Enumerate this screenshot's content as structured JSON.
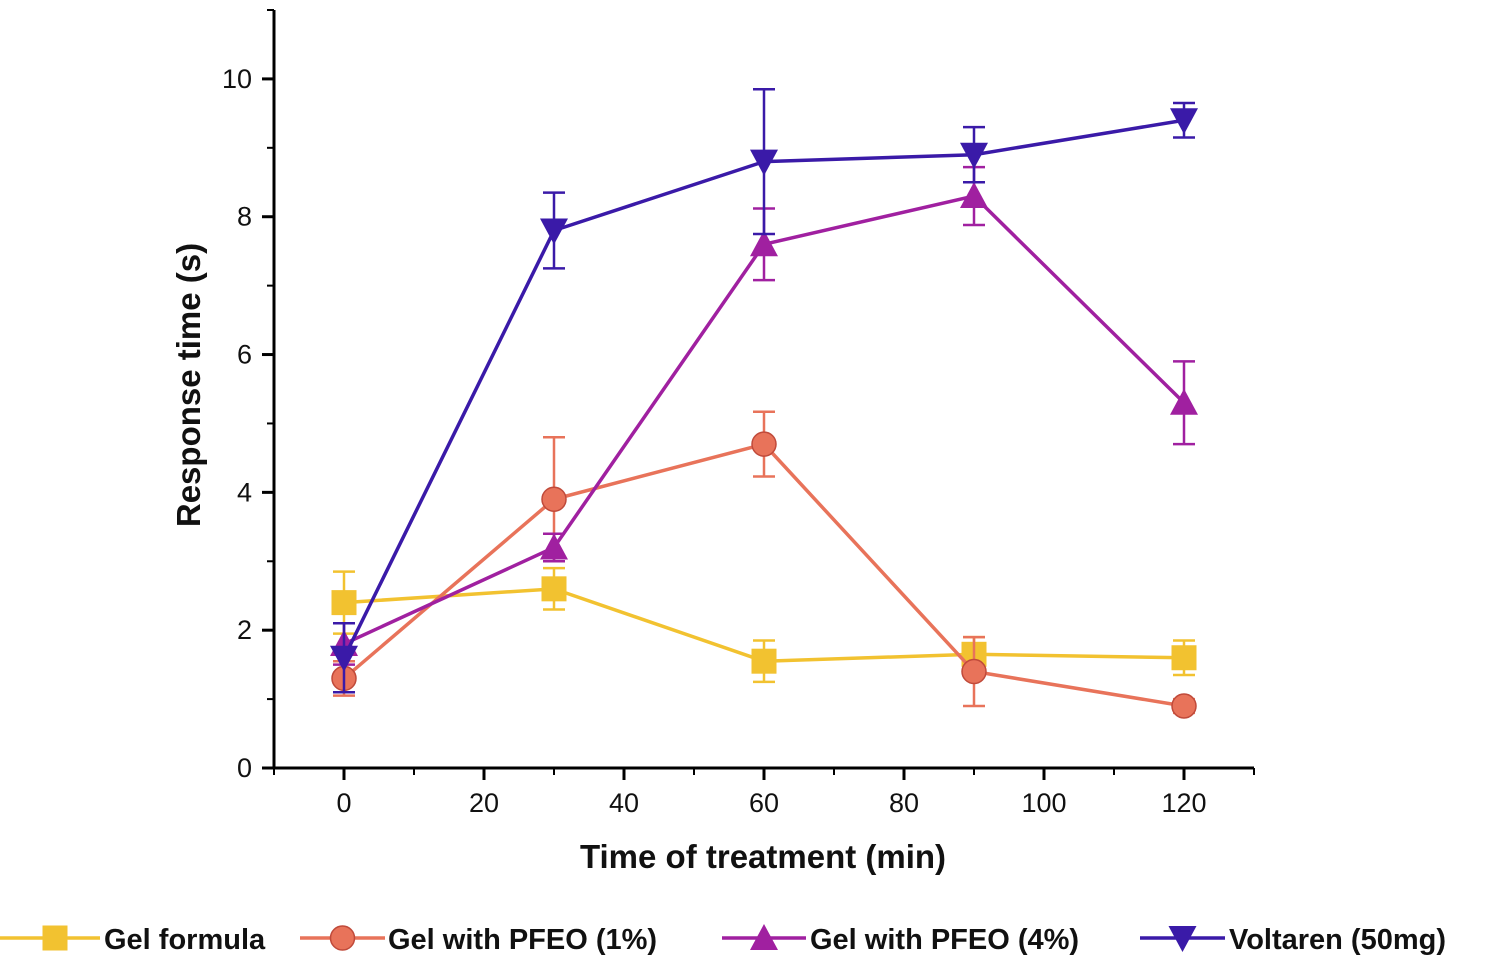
{
  "chart_data": {
    "type": "line",
    "title": "",
    "xlabel": "Time of treatment (min)",
    "ylabel": "Response time (s)",
    "x_ticks": [
      0,
      20,
      40,
      60,
      80,
      100,
      120
    ],
    "x_tick_labels": [
      "0",
      "20",
      "40",
      "60",
      "80",
      "100",
      "120"
    ],
    "y_ticks": [
      0,
      2,
      4,
      6,
      8,
      10
    ],
    "y_tick_labels": [
      "0",
      "2",
      "4",
      "6",
      "8",
      "10"
    ],
    "xlim": [
      -10,
      130
    ],
    "ylim": [
      0,
      11
    ],
    "grid": false,
    "legend_position": "bottom",
    "x": [
      0,
      30,
      60,
      90,
      120
    ],
    "series": [
      {
        "name": "Gel formula",
        "color": "#f2c230",
        "marker": "square",
        "values": [
          2.4,
          2.6,
          1.55,
          1.65,
          1.6
        ],
        "errors": [
          0.45,
          0.3,
          0.3,
          0.25,
          0.25
        ]
      },
      {
        "name": "Gel with PFEO (1%)",
        "color": "#e8735a",
        "marker": "circle",
        "values": [
          1.3,
          3.9,
          4.7,
          1.4,
          0.9
        ],
        "errors": [
          0.25,
          0.9,
          0.47,
          0.5,
          0.1
        ]
      },
      {
        "name": "Gel with PFEO (4%)",
        "color": "#a020a0",
        "marker": "triangle-up",
        "values": [
          1.8,
          3.2,
          7.6,
          8.3,
          5.3
        ],
        "errors": [
          0.3,
          0.2,
          0.52,
          0.42,
          0.6
        ]
      },
      {
        "name": "Voltaren (50mg)",
        "color": "#3a1aa8",
        "marker": "triangle-down",
        "values": [
          1.6,
          7.8,
          8.8,
          8.9,
          9.4
        ],
        "errors": [
          0.5,
          0.55,
          1.05,
          0.4,
          0.25
        ]
      }
    ]
  }
}
